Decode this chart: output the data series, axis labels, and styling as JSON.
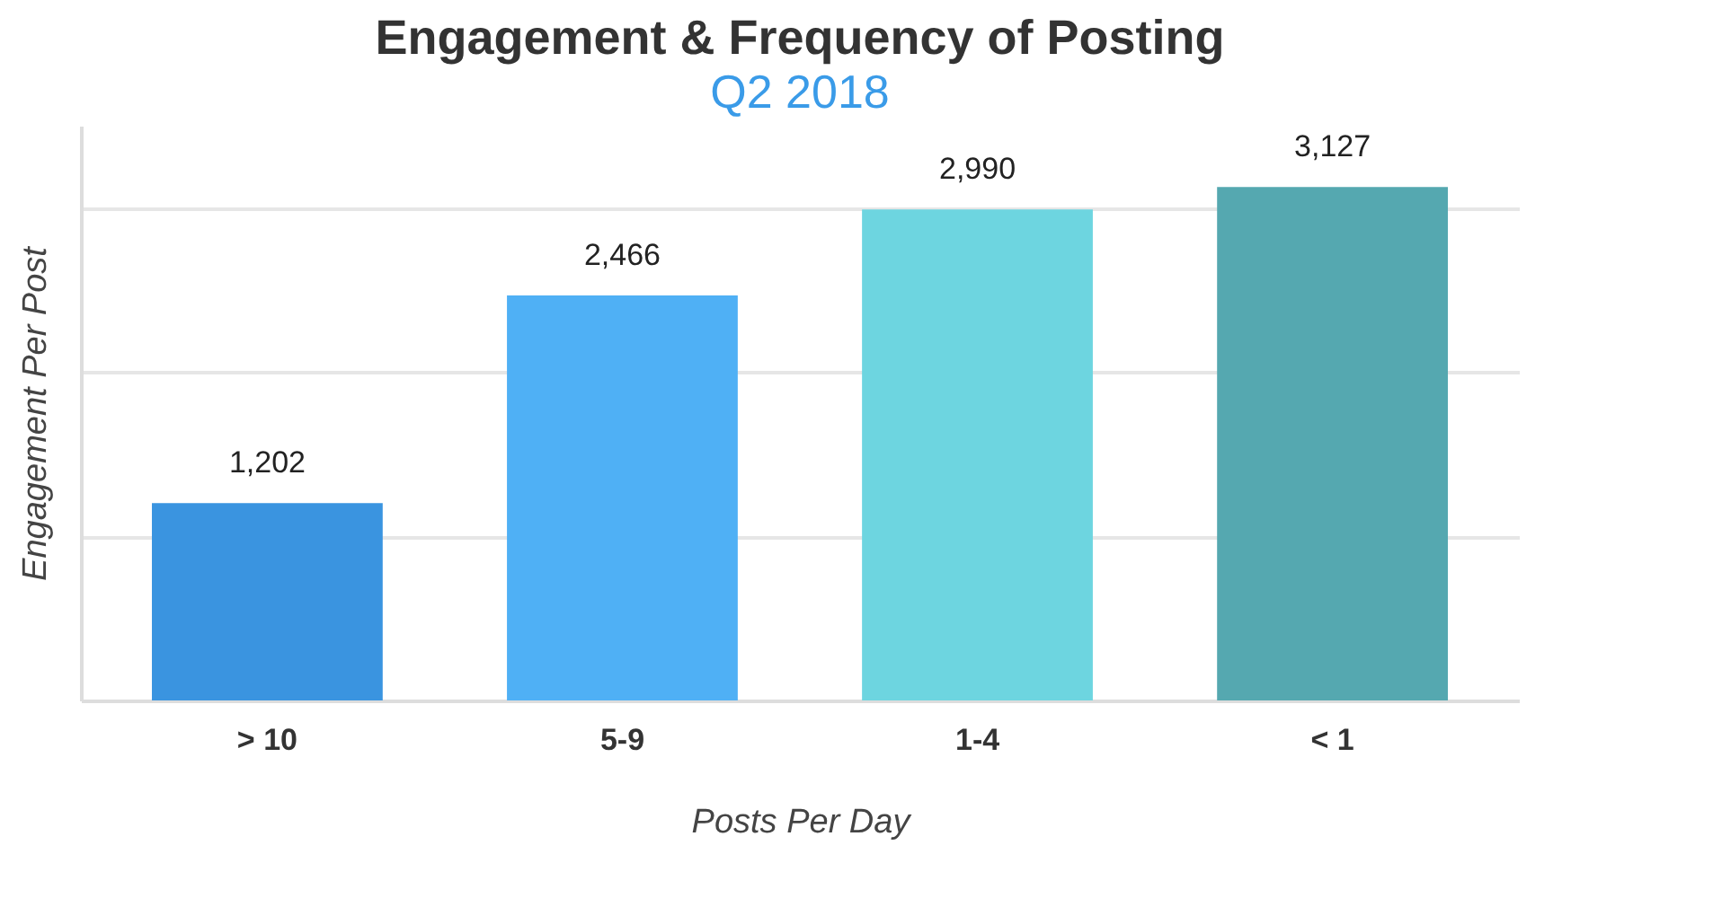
{
  "chart_data": {
    "type": "bar",
    "title": "Engagement & Frequency of Posting",
    "subtitle": "Q2 2018",
    "xlabel": "Posts Per Day",
    "ylabel": "Engagement Per Post",
    "categories": [
      "> 10",
      "5-9",
      "1-4",
      "< 1"
    ],
    "values": [
      1202,
      2466,
      2990,
      3127
    ],
    "value_labels": [
      "1,202",
      "2,466",
      "2,990",
      "3,127"
    ],
    "colors": [
      "#3a94e0",
      "#4fb0f5",
      "#6dd5e0",
      "#55a8b0"
    ],
    "grid": "y"
  }
}
